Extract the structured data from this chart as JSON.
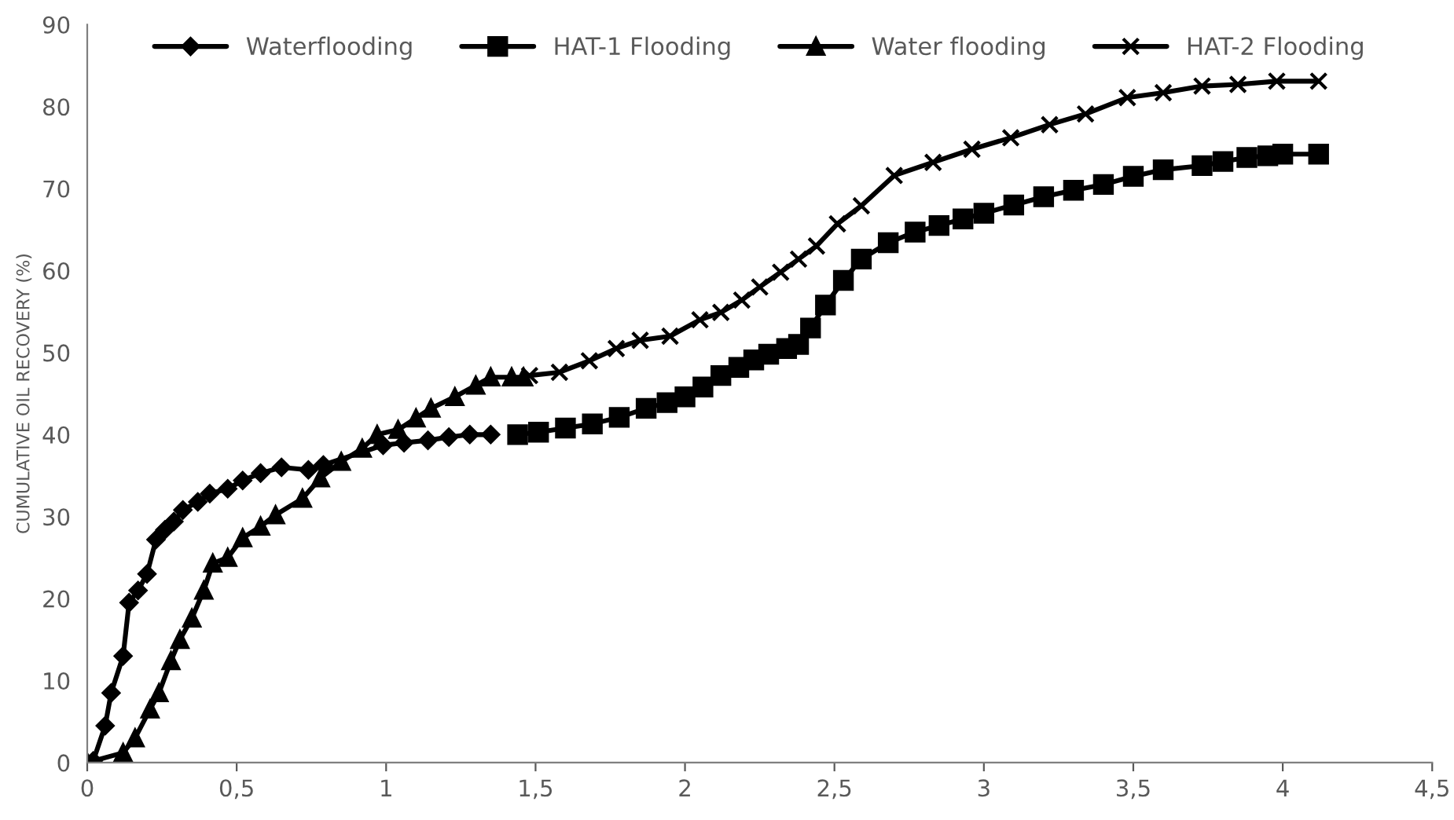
{
  "chart_data": {
    "type": "line",
    "ylabel": "CUMULATIVE OIL RECOVERY (%)",
    "xlim": [
      0,
      4.5
    ],
    "xticks": [
      0,
      {
        "value": 0.5,
        "label": "0,5"
      },
      1,
      {
        "value": 1.5,
        "label": "1,5"
      },
      2,
      {
        "value": 2.5,
        "label": "2,5"
      },
      3,
      {
        "value": 3.5,
        "label": "3,5"
      },
      4,
      {
        "value": 4.5,
        "label": "4,5"
      }
    ],
    "ylim": [
      0,
      90
    ],
    "yticks": [
      0,
      10,
      20,
      30,
      40,
      50,
      60,
      70,
      80,
      90
    ],
    "grid": false,
    "legend": "top",
    "line_style": "solid",
    "series": [
      {
        "name": "Waterflooding",
        "color": "#000000",
        "marker": "diamond",
        "x": [
          0,
          0.02,
          0.06,
          0.08,
          0.12,
          0.14,
          0.17,
          0.2,
          0.23,
          0.26,
          0.29,
          0.32,
          0.37,
          0.41,
          0.47,
          0.52,
          0.58,
          0.65,
          0.74,
          0.79,
          0.99,
          1.06,
          1.14,
          1.21,
          1.28,
          1.35
        ],
        "values": [
          0,
          0.2,
          4.5,
          8.5,
          13,
          19.5,
          21,
          23,
          27.2,
          28.4,
          29.4,
          30.8,
          31.8,
          32.8,
          33.4,
          34.4,
          35.3,
          36,
          35.7,
          36.3,
          38.7,
          39,
          39.3,
          39.7,
          40,
          40
        ]
      },
      {
        "name": "HAT-1 Flooding",
        "color": "#000000",
        "marker": "square",
        "x": [
          1.44,
          1.51,
          1.6,
          1.69,
          1.78,
          1.87,
          1.94,
          2.0,
          2.06,
          2.12,
          2.18,
          2.23,
          2.28,
          2.34,
          2.38,
          2.42,
          2.47,
          2.53,
          2.59,
          2.68,
          2.77,
          2.85,
          2.93,
          3.0,
          3.1,
          3.2,
          3.3,
          3.4,
          3.5,
          3.6,
          3.73,
          3.8,
          3.88,
          3.95,
          4.0,
          4.12
        ],
        "values": [
          40,
          40.3,
          40.8,
          41.3,
          42.1,
          43.2,
          43.9,
          44.6,
          45.8,
          47.2,
          48.2,
          49.1,
          49.8,
          50.5,
          51,
          53,
          55.8,
          58.8,
          61.4,
          63.4,
          64.7,
          65.5,
          66.3,
          67,
          68,
          69,
          69.8,
          70.5,
          71.5,
          72.3,
          72.8,
          73.3,
          73.8,
          74,
          74.2,
          74.2
        ]
      },
      {
        "name": "Water flooding",
        "color": "#000000",
        "marker": "triangle",
        "x": [
          0,
          0.12,
          0.16,
          0.21,
          0.24,
          0.28,
          0.31,
          0.35,
          0.39,
          0.42,
          0.47,
          0.52,
          0.58,
          0.63,
          0.72,
          0.78,
          0.85,
          0.92,
          0.97,
          1.04,
          1.1,
          1.15,
          1.23,
          1.3,
          1.35,
          1.42,
          1.46
        ],
        "values": [
          0,
          1.2,
          3,
          6.5,
          8.5,
          12.4,
          15,
          17.6,
          21,
          24.3,
          25,
          27.4,
          28.8,
          30.2,
          32.2,
          34.7,
          36.7,
          38.3,
          40,
          40.6,
          42,
          43.2,
          44.6,
          46,
          47,
          47,
          47
        ]
      },
      {
        "name": "HAT-2 Flooding",
        "color": "#000000",
        "marker": "cross",
        "x": [
          1.48,
          1.58,
          1.68,
          1.77,
          1.85,
          1.95,
          2.05,
          2.12,
          2.19,
          2.25,
          2.32,
          2.38,
          2.44,
          2.51,
          2.59,
          2.7,
          2.83,
          2.96,
          3.09,
          3.22,
          3.34,
          3.48,
          3.6,
          3.73,
          3.85,
          3.98,
          4.12
        ],
        "values": [
          47.2,
          47.6,
          49,
          50.5,
          51.5,
          52,
          54,
          54.9,
          56.4,
          58,
          59.8,
          61.4,
          63,
          65.7,
          67.9,
          71.6,
          73.2,
          74.8,
          76.2,
          77.8,
          79.1,
          81.1,
          81.7,
          82.5,
          82.7,
          83.1,
          83.1
        ]
      }
    ]
  }
}
